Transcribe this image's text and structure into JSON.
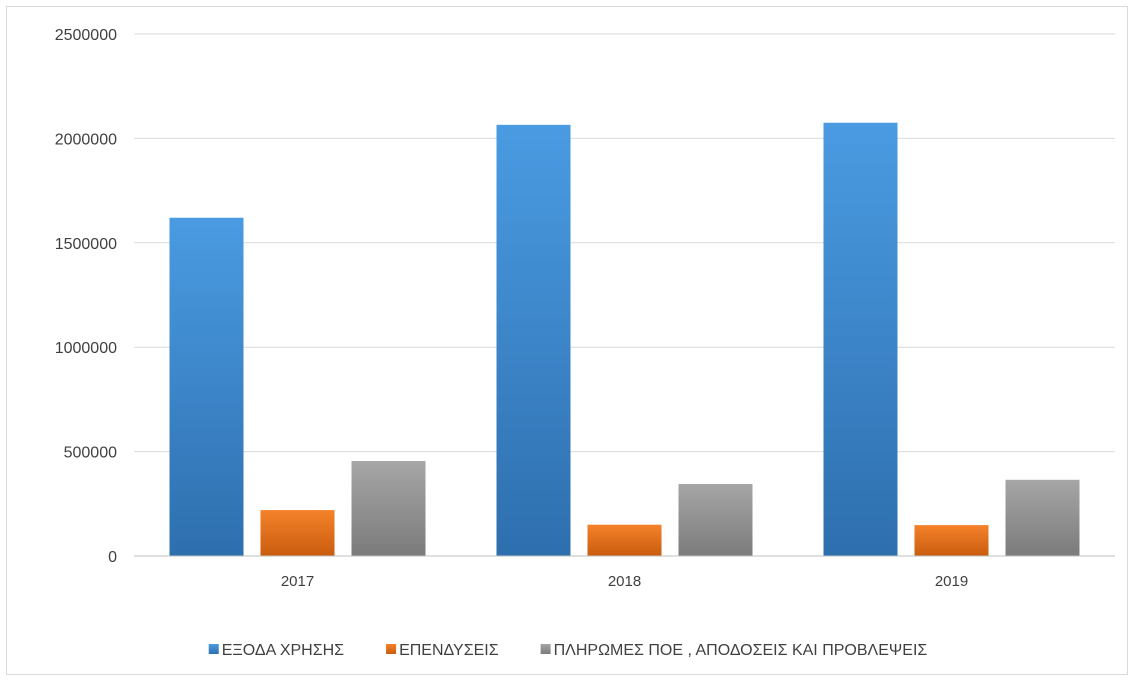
{
  "chart_data": {
    "type": "bar",
    "title": "",
    "xlabel": "",
    "ylabel": "",
    "categories": [
      "2017",
      "2018",
      "2019"
    ],
    "series": [
      {
        "name": "ΕΞΟΔΑ ΧΡΗΣΗΣ",
        "values": [
          1620000,
          2065000,
          2075000
        ],
        "color": "#4a9be2",
        "color_dark": "#2e6fae"
      },
      {
        "name": "ΕΠΕΝΔΥΣΕΙΣ",
        "values": [
          220000,
          150000,
          148000
        ],
        "color": "#f5822a",
        "color_dark": "#c95c0f"
      },
      {
        "name": "ΠΛΗΡΩΜΕΣ ΠΟΕ , ΑΠΟΔΟΣΕΙΣ ΚΑΙ ΠΡΟΒΛΕΨΕΙΣ",
        "values": [
          455000,
          345000,
          365000
        ],
        "color": "#a6a6a6",
        "color_dark": "#7b7b7b"
      }
    ],
    "ylim": [
      0,
      2500000
    ],
    "yticks": [
      "0",
      "500000",
      "1000000",
      "1500000",
      "2000000",
      "2500000"
    ],
    "grid": true,
    "legend_position": "bottom",
    "gridline_color": "#d9d9d9",
    "axis_color": "#bfbfbf"
  }
}
